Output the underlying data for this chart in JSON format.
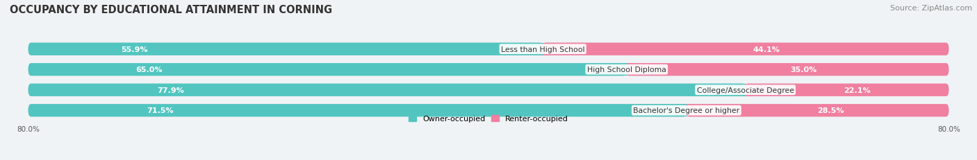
{
  "title": "OCCUPANCY BY EDUCATIONAL ATTAINMENT IN CORNING",
  "source": "Source: ZipAtlas.com",
  "categories": [
    "Less than High School",
    "High School Diploma",
    "College/Associate Degree",
    "Bachelor's Degree or higher"
  ],
  "owner_values": [
    55.9,
    65.0,
    77.9,
    71.5
  ],
  "renter_values": [
    44.1,
    35.0,
    22.1,
    28.5
  ],
  "owner_color": "#52C5C0",
  "renter_color": "#F07FA0",
  "owner_label": "Owner-occupied",
  "renter_label": "Renter-occupied",
  "axis_left_label": "80.0%",
  "axis_right_label": "80.0%",
  "background_color": "#f0f3f5",
  "bar_background": "#dde4e8",
  "title_fontsize": 10.5,
  "source_fontsize": 8,
  "bar_height": 0.62,
  "figsize": [
    14.06,
    2.32
  ],
  "dpi": 100
}
